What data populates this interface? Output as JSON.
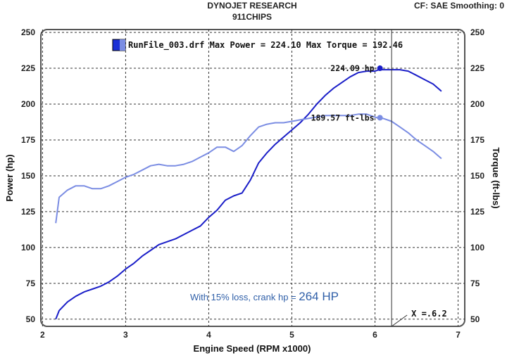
{
  "header": {
    "title": "DYNOJET RESEARCH",
    "subtitle": "911CHIPS",
    "settings": "CF: SAE  Smoothing: 0"
  },
  "legend": {
    "label": "RunFile_003.drf Max Power = 224.10 Max Torque = 192.46",
    "swatch_color": "#1a2fd6"
  },
  "note": {
    "prefix": "With 15% loss, crank hp = ",
    "value": "264 HP"
  },
  "cursor": {
    "label": "X =.6.2",
    "x": 6.2
  },
  "chart_data": {
    "type": "line",
    "xlabel": "Engine Speed (RPM x1000)",
    "ylabel": "Power (hp)",
    "y2label": "Torque (ft-lbs)",
    "xlim": [
      1.98,
      7.08
    ],
    "ylim": [
      45,
      252
    ],
    "x_ticks": [
      "2",
      "3",
      "4",
      "5",
      "6",
      "7"
    ],
    "x_tick_values": [
      2,
      3,
      4,
      5,
      6,
      7
    ],
    "y_ticks": [
      "50",
      "75",
      "100",
      "125",
      "150",
      "175",
      "200",
      "225",
      "250"
    ],
    "y_tick_values": [
      50,
      75,
      100,
      125,
      150,
      175,
      200,
      225,
      250
    ],
    "grid": true,
    "series": [
      {
        "color": "#1a1ec8",
        "x": [
          2.16,
          2.2,
          2.3,
          2.4,
          2.5,
          2.6,
          2.7,
          2.8,
          2.9,
          3.0,
          3.1,
          3.2,
          3.3,
          3.4,
          3.5,
          3.6,
          3.7,
          3.8,
          3.9,
          4.0,
          4.1,
          4.2,
          4.3,
          4.4,
          4.5,
          4.6,
          4.7,
          4.8,
          4.9,
          5.0,
          5.1,
          5.2,
          5.3,
          5.4,
          5.5,
          5.6,
          5.7,
          5.8,
          5.9,
          6.0,
          6.05,
          6.1,
          6.2,
          6.3,
          6.4,
          6.5,
          6.6,
          6.7,
          6.8
        ],
        "values": [
          50,
          56,
          62,
          66,
          69,
          71,
          73,
          76,
          80,
          85,
          89,
          94,
          98,
          102,
          104,
          106,
          109,
          112,
          115,
          121,
          126,
          133,
          136,
          138,
          147,
          159,
          166,
          172,
          177,
          182,
          187,
          193,
          200,
          206,
          211,
          215,
          219,
          222,
          223,
          223,
          224,
          224,
          224,
          224,
          223,
          220,
          217,
          214,
          209
        ]
      },
      {
        "color": "#7b8de3",
        "x": [
          2.16,
          2.2,
          2.3,
          2.4,
          2.5,
          2.6,
          2.7,
          2.8,
          2.9,
          3.0,
          3.1,
          3.2,
          3.3,
          3.4,
          3.5,
          3.6,
          3.7,
          3.8,
          3.9,
          4.0,
          4.1,
          4.2,
          4.3,
          4.4,
          4.5,
          4.6,
          4.7,
          4.8,
          4.9,
          5.0,
          5.1,
          5.2,
          5.3,
          5.4,
          5.5,
          5.6,
          5.7,
          5.8,
          5.9,
          6.0,
          6.05,
          6.1,
          6.2,
          6.3,
          6.4,
          6.5,
          6.6,
          6.7,
          6.8
        ],
        "values": [
          117,
          135,
          140,
          143,
          143,
          141,
          141,
          143,
          146,
          149,
          151,
          154,
          157,
          158,
          157,
          157,
          158,
          160,
          163,
          166,
          170,
          170,
          167,
          171,
          178,
          184,
          186,
          187,
          187,
          188,
          189,
          190,
          191,
          192,
          192,
          192,
          192,
          193,
          193,
          191,
          190,
          190,
          188,
          184,
          180,
          175,
          171,
          167,
          162
        ]
      }
    ],
    "annotations": [
      {
        "text": "224.09 hp",
        "x": 6.06,
        "y": 225
      },
      {
        "text": "189.57 ft-lbs",
        "x": 6.06,
        "y": 190.5
      }
    ]
  }
}
